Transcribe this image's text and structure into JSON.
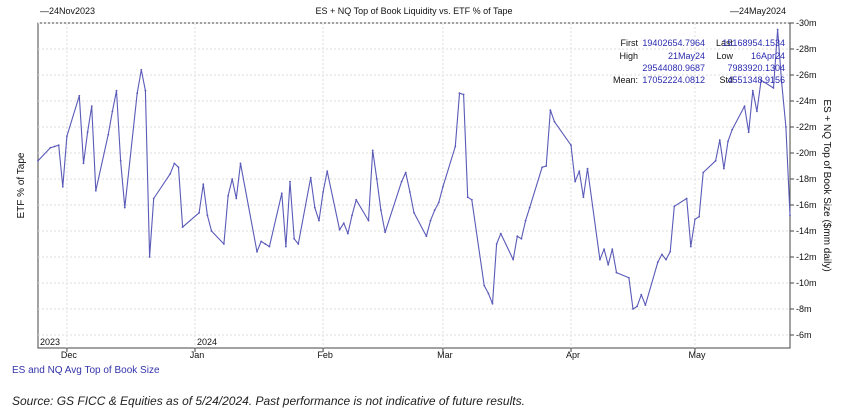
{
  "chart_data": {
    "type": "line",
    "title": "ES + NQ Top of Book Liquidity vs. ETF % of Tape",
    "start_label": "24Nov2023",
    "end_label": "24May2024",
    "y_left_label": "ETF % of Tape",
    "y_right_label": "ES + NQ Top of Book Size ($mm daily)",
    "y_range": [
      5,
      30
    ],
    "y_ticks": [
      "6m",
      "8m",
      "10m",
      "12m",
      "14m",
      "16m",
      "18m",
      "20m",
      "22m",
      "24m",
      "26m",
      "28m",
      "30m"
    ],
    "x_range": [
      "2023-11-24",
      "2024-05-24"
    ],
    "x_ticks": [
      {
        "date": "2023-12-01",
        "label": "Dec"
      },
      {
        "date": "2024-01-01",
        "label": "Jan"
      },
      {
        "date": "2024-02-01",
        "label": "Feb"
      },
      {
        "date": "2024-03-01",
        "label": "Mar"
      },
      {
        "date": "2024-04-01",
        "label": "Apr"
      },
      {
        "date": "2024-05-01",
        "label": "May"
      }
    ],
    "year_labels": [
      {
        "date": "2023-11-24",
        "label": "2023"
      },
      {
        "date": "2024-01-01",
        "label": "2024"
      }
    ],
    "grid": true,
    "line_color": "#5a5ab8",
    "series": [
      {
        "name": "ES and NQ Avg Top of Book Size",
        "points": [
          [
            "2023-11-24",
            19.4
          ],
          [
            "2023-11-27",
            20.4
          ],
          [
            "2023-11-28",
            20.5
          ],
          [
            "2023-11-29",
            20.6
          ],
          [
            "2023-11-30",
            17.4
          ],
          [
            "2023-12-01",
            21.3
          ],
          [
            "2023-12-04",
            24.4
          ],
          [
            "2023-12-05",
            19.2
          ],
          [
            "2023-12-06",
            21.6
          ],
          [
            "2023-12-07",
            23.6
          ],
          [
            "2023-12-08",
            17.1
          ],
          [
            "2023-12-11",
            21.4
          ],
          [
            "2023-12-12",
            23.2
          ],
          [
            "2023-12-13",
            24.8
          ],
          [
            "2023-12-14",
            19.4
          ],
          [
            "2023-12-15",
            15.8
          ],
          [
            "2023-12-18",
            24.6
          ],
          [
            "2023-12-19",
            26.4
          ],
          [
            "2023-12-20",
            24.8
          ],
          [
            "2023-12-21",
            12.0
          ],
          [
            "2023-12-22",
            16.5
          ],
          [
            "2023-12-26",
            18.4
          ],
          [
            "2023-12-27",
            19.2
          ],
          [
            "2023-12-28",
            18.9
          ],
          [
            "2023-12-29",
            14.3
          ],
          [
            "2024-01-02",
            15.4
          ],
          [
            "2024-01-03",
            17.6
          ],
          [
            "2024-01-04",
            15.2
          ],
          [
            "2024-01-05",
            14.0
          ],
          [
            "2024-01-08",
            13.0
          ],
          [
            "2024-01-09",
            16.7
          ],
          [
            "2024-01-10",
            18.0
          ],
          [
            "2024-01-11",
            16.5
          ],
          [
            "2024-01-12",
            19.2
          ],
          [
            "2024-01-16",
            12.4
          ],
          [
            "2024-01-17",
            13.2
          ],
          [
            "2024-01-18",
            13.0
          ],
          [
            "2024-01-19",
            12.8
          ],
          [
            "2024-01-22",
            16.9
          ],
          [
            "2024-01-23",
            12.8
          ],
          [
            "2024-01-24",
            17.8
          ],
          [
            "2024-01-25",
            13.4
          ],
          [
            "2024-01-26",
            13.0
          ],
          [
            "2024-01-29",
            18.1
          ],
          [
            "2024-01-30",
            15.8
          ],
          [
            "2024-01-31",
            14.8
          ],
          [
            "2024-02-01",
            17.0
          ],
          [
            "2024-02-02",
            18.6
          ],
          [
            "2024-02-05",
            14.1
          ],
          [
            "2024-02-06",
            14.6
          ],
          [
            "2024-02-07",
            13.8
          ],
          [
            "2024-02-08",
            15.2
          ],
          [
            "2024-02-09",
            16.4
          ],
          [
            "2024-02-12",
            14.8
          ],
          [
            "2024-02-13",
            20.2
          ],
          [
            "2024-02-14",
            18.0
          ],
          [
            "2024-02-15",
            15.6
          ],
          [
            "2024-02-16",
            13.9
          ],
          [
            "2024-02-20",
            17.8
          ],
          [
            "2024-02-21",
            18.5
          ],
          [
            "2024-02-22",
            17.0
          ],
          [
            "2024-02-23",
            15.4
          ],
          [
            "2024-02-26",
            13.6
          ],
          [
            "2024-02-27",
            14.8
          ],
          [
            "2024-02-28",
            15.6
          ],
          [
            "2024-02-29",
            16.2
          ],
          [
            "2024-03-01",
            17.4
          ],
          [
            "2024-03-04",
            20.5
          ],
          [
            "2024-03-05",
            24.6
          ],
          [
            "2024-03-06",
            24.5
          ],
          [
            "2024-03-07",
            16.6
          ],
          [
            "2024-03-08",
            16.4
          ],
          [
            "2024-03-11",
            9.8
          ],
          [
            "2024-03-12",
            9.2
          ],
          [
            "2024-03-13",
            8.4
          ],
          [
            "2024-03-14",
            13.0
          ],
          [
            "2024-03-15",
            13.8
          ],
          [
            "2024-03-18",
            11.8
          ],
          [
            "2024-03-19",
            13.6
          ],
          [
            "2024-03-20",
            13.4
          ],
          [
            "2024-03-21",
            14.8
          ],
          [
            "2024-03-22",
            15.8
          ],
          [
            "2024-03-25",
            18.9
          ],
          [
            "2024-03-26",
            19.0
          ],
          [
            "2024-03-27",
            23.3
          ],
          [
            "2024-03-28",
            22.4
          ],
          [
            "2024-04-01",
            20.6
          ],
          [
            "2024-04-02",
            17.8
          ],
          [
            "2024-04-03",
            18.6
          ],
          [
            "2024-04-04",
            16.6
          ],
          [
            "2024-04-05",
            18.8
          ],
          [
            "2024-04-08",
            11.8
          ],
          [
            "2024-04-09",
            12.6
          ],
          [
            "2024-04-10",
            11.4
          ],
          [
            "2024-04-11",
            12.6
          ],
          [
            "2024-04-12",
            10.8
          ],
          [
            "2024-04-15",
            10.4
          ],
          [
            "2024-04-16",
            8.0
          ],
          [
            "2024-04-17",
            8.2
          ],
          [
            "2024-04-18",
            9.1
          ],
          [
            "2024-04-19",
            8.3
          ],
          [
            "2024-04-22",
            11.6
          ],
          [
            "2024-04-23",
            12.2
          ],
          [
            "2024-04-24",
            11.8
          ],
          [
            "2024-04-25",
            12.4
          ],
          [
            "2024-04-26",
            15.9
          ],
          [
            "2024-04-29",
            16.5
          ],
          [
            "2024-04-30",
            12.8
          ],
          [
            "2024-05-01",
            14.9
          ],
          [
            "2024-05-02",
            15.1
          ],
          [
            "2024-05-03",
            18.5
          ],
          [
            "2024-05-06",
            19.4
          ],
          [
            "2024-05-07",
            21.0
          ],
          [
            "2024-05-08",
            18.8
          ],
          [
            "2024-05-09",
            20.9
          ],
          [
            "2024-05-10",
            21.8
          ],
          [
            "2024-05-13",
            23.6
          ],
          [
            "2024-05-14",
            21.6
          ],
          [
            "2024-05-15",
            24.8
          ],
          [
            "2024-05-16",
            23.2
          ],
          [
            "2024-05-17",
            25.6
          ],
          [
            "2024-05-20",
            25.0
          ],
          [
            "2024-05-21",
            29.5
          ],
          [
            "2024-05-22",
            25.4
          ],
          [
            "2024-05-23",
            22.0
          ],
          [
            "2024-05-24",
            15.2
          ]
        ]
      }
    ],
    "stats": {
      "first_label": "First",
      "first_value": "19402654.7964",
      "last_label": "Last",
      "last_value": "15168954.1534",
      "high_label": "High",
      "high_date": "21May24",
      "high_value": "29544080.9687",
      "low_label": "Low",
      "low_date": "16Apr24",
      "low_value": "7983920.1304",
      "mean_label": "Mean:",
      "mean_value": "17052224.0812",
      "std_label": "Std",
      "std_value": "4551348.9156"
    }
  },
  "legend_label": "ES and NQ Avg Top of Book Size",
  "source_note": "Source: GS FICC & Equities as of 5/24/2024. Past performance is not indicative of future results."
}
